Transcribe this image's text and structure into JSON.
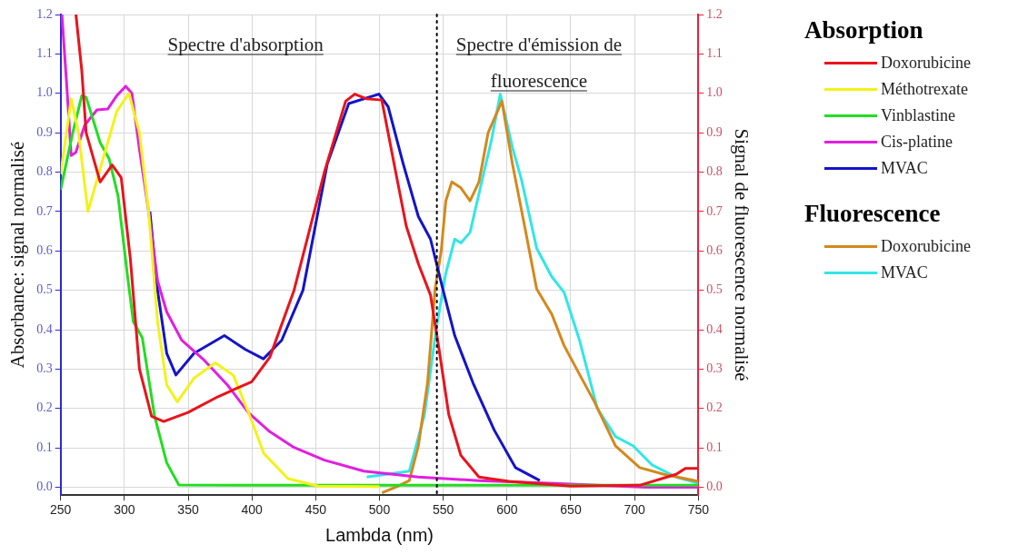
{
  "chart_data": {
    "type": "line",
    "xlabel": "Lambda (nm)",
    "ylabel": "Absorbance: signal normalisé",
    "y2label": "Signal de fluorescence normalisé",
    "legend_title": [
      "Absorption",
      "Fluorescence"
    ],
    "legend": "right",
    "grid": true,
    "annotations": [
      "Spectre d'absorption",
      "Spectre d'émission de fluorescence"
    ],
    "ref_lines": [
      {
        "axis": "x",
        "value": 545,
        "color": "#000000",
        "line_style": "dotted"
      }
    ],
    "xlim": [
      250,
      750
    ],
    "xticks": [
      250,
      300,
      350,
      400,
      450,
      500,
      550,
      600,
      650,
      700,
      750
    ],
    "ylim": [
      -0.02,
      1.2
    ],
    "yticks": [
      {
        "value": 0,
        "label": "0.0"
      },
      0.1,
      0.2,
      0.3,
      0.4,
      0.5,
      0.6,
      0.7,
      0.8,
      0.9,
      {
        "value": 1,
        "label": "1.0"
      },
      1.1,
      1.2
    ],
    "y2lim": [
      -0.02,
      1.2
    ],
    "y2ticks": [
      {
        "value": 0,
        "label": "0.0"
      },
      0.1,
      0.2,
      0.3,
      0.4,
      0.5,
      0.6,
      0.7,
      0.8,
      0.9,
      {
        "value": 1,
        "label": "1.0"
      },
      1.1,
      1.2
    ],
    "series": [
      {
        "name": "Doxorubicine",
        "color": "#e8141c",
        "x": [
          262,
          266.6,
          270,
          281,
          290.4,
          297.5,
          304.7,
          311.8,
          321.3,
          330.8,
          349.9,
          373.4,
          399.8,
          414,
          433,
          456.8,
          473.5,
          480.6,
          490,
          501.8,
          511.5,
          521,
          530.5,
          540,
          547,
          554.3,
          563.8,
          578,
          601.6,
          650,
          704,
          732.6,
          739.8,
          750
        ],
        "values": [
          1.2,
          1.057,
          0.9,
          0.775,
          0.818,
          0.786,
          0.579,
          0.3,
          0.18,
          0.167,
          0.19,
          0.23,
          0.268,
          0.33,
          0.5,
          0.8,
          0.98,
          0.998,
          0.986,
          0.983,
          0.82,
          0.663,
          0.567,
          0.488,
          0.344,
          0.185,
          0.081,
          0.026,
          0.015,
          0.003,
          0.005,
          0.033,
          0.048,
          0.048
        ]
      },
      {
        "name": "Méthotrexate",
        "color": "#f2f21a",
        "x": [
          250,
          258.3,
          264,
          271.4,
          283.3,
          294,
          303.5,
          311.8,
          319,
          326,
          333.2,
          341.5,
          354.6,
          371.3,
          385.5,
          397.4,
          409.3,
          428.3,
          452,
          500
        ],
        "values": [
          0.795,
          0.986,
          0.9,
          0.7,
          0.834,
          0.954,
          1.0,
          0.9,
          0.7,
          0.42,
          0.26,
          0.217,
          0.277,
          0.316,
          0.284,
          0.189,
          0.086,
          0.022,
          0.003,
          0.002
        ]
      },
      {
        "name": "Vinblastine",
        "color": "#22dd22",
        "x": [
          250,
          259.5,
          266.6,
          270,
          281,
          288,
          295,
          302.3,
          307,
          314,
          323.7,
          333.2,
          342.7,
          400,
          500,
          600,
          750
        ],
        "values": [
          0.755,
          0.9,
          0.994,
          0.99,
          0.875,
          0.834,
          0.74,
          0.54,
          0.42,
          0.38,
          0.18,
          0.062,
          0.006,
          0.005,
          0.005,
          0.005,
          0.005
        ]
      },
      {
        "name": "Cis-platine",
        "color": "#e020e0",
        "x": [
          251,
          254.8,
          258.3,
          261.9,
          269,
          278.5,
          286.9,
          294,
          301,
          305.9,
          311.8,
          319,
          326,
          333.2,
          345,
          361.8,
          380.7,
          397.4,
          414,
          433,
          456.8,
          487.7,
          530.5,
          578,
          637,
          708.6,
          750
        ],
        "values": [
          1.2,
          1.02,
          0.842,
          0.85,
          0.92,
          0.958,
          0.96,
          0.994,
          1.018,
          1.0,
          0.858,
          0.7,
          0.524,
          0.445,
          0.373,
          0.325,
          0.26,
          0.189,
          0.141,
          0.101,
          0.069,
          0.041,
          0.026,
          0.017,
          0.01,
          0.0,
          0.0
        ]
      },
      {
        "name": "MVAC",
        "color": "#1414c8",
        "x": [
          320,
          326,
          333.2,
          340.4,
          354.6,
          378.4,
          394.8,
          409,
          423.3,
          440,
          459,
          475.9,
          499.6,
          506.8,
          518.7,
          530.5,
          540,
          549.6,
          559,
          573.3,
          590,
          606.6,
          625.7
        ],
        "values": [
          0.7,
          0.5,
          0.34,
          0.285,
          0.34,
          0.385,
          0.35,
          0.326,
          0.373,
          0.5,
          0.82,
          0.974,
          0.998,
          0.966,
          0.82,
          0.687,
          0.63,
          0.504,
          0.385,
          0.265,
          0.145,
          0.05,
          0.017
        ]
      },
      {
        "name": "Doxorubicine",
        "color": "#d4891c",
        "axis": "y2",
        "x": [
          502,
          514,
          523.4,
          530.5,
          537.7,
          543.6,
          548.4,
          552,
          556.7,
          563.8,
          571,
          578,
          585.2,
          596,
          604.3,
          613.8,
          623.2,
          635,
          644.7,
          656.6,
          668.5,
          685,
          704,
          723,
          750
        ],
        "values": [
          -0.014,
          0.002,
          0.017,
          0.105,
          0.265,
          0.504,
          0.6,
          0.727,
          0.775,
          0.76,
          0.727,
          0.775,
          0.9,
          0.98,
          0.82,
          0.663,
          0.504,
          0.44,
          0.36,
          0.288,
          0.217,
          0.105,
          0.05,
          0.033,
          0.015
        ]
      },
      {
        "name": "MVAC",
        "color": "#33e6e6",
        "axis": "y2",
        "x": [
          490,
          523.4,
          535.3,
          544.8,
          552,
          559,
          563.8,
          571,
          580.5,
          587.6,
          594.7,
          604.3,
          611.4,
          623.2,
          635,
          644.7,
          656.6,
          670.8,
          685,
          699,
          713.6,
          732.6,
          750
        ],
        "values": [
          0.026,
          0.041,
          0.185,
          0.408,
          0.543,
          0.63,
          0.62,
          0.647,
          0.78,
          0.878,
          0.998,
          0.862,
          0.78,
          0.607,
          0.535,
          0.495,
          0.376,
          0.2,
          0.129,
          0.105,
          0.057,
          0.026,
          0.01
        ]
      }
    ]
  }
}
